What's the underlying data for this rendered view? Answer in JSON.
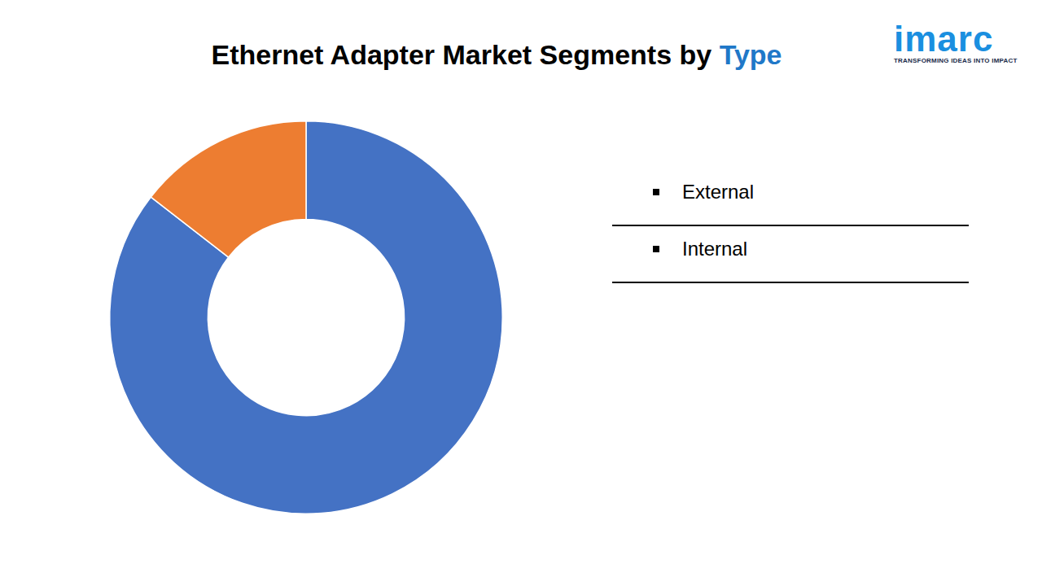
{
  "chart_data": {
    "type": "doughnut",
    "title": "Ethernet Adapter Market Segments by Type",
    "categories": [
      "External",
      "Internal"
    ],
    "values": [
      85.5,
      14.5
    ],
    "colors": [
      "#4472c4",
      "#ed7d31"
    ],
    "legend": "right"
  },
  "logo": {
    "name": "imarc",
    "tagline": "TRANSFORMING IDEAS INTO IMPACT"
  }
}
